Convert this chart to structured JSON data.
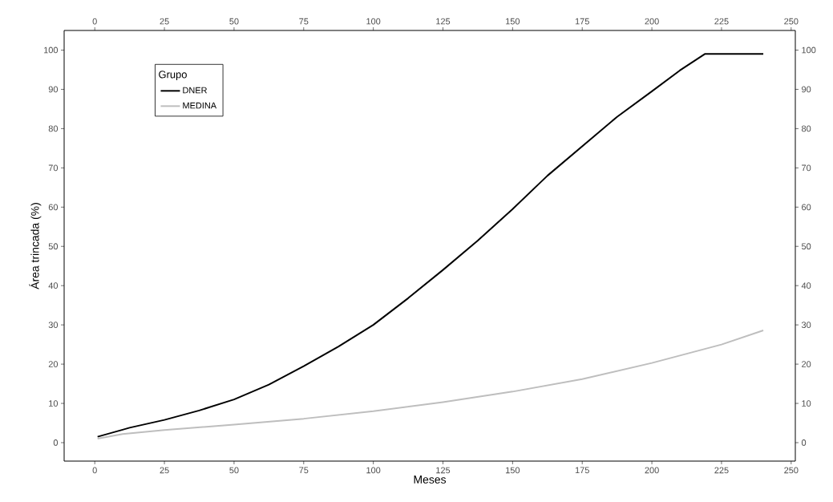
{
  "chart_data": {
    "type": "line",
    "xlabel": "Meses",
    "ylabel": "Área trincada (%)",
    "legend_title": "Grupo",
    "xlim": [
      -11,
      251.5
    ],
    "ylim": [
      -4.7,
      105
    ],
    "xticks": [
      0,
      25,
      50,
      75,
      100,
      125,
      150,
      175,
      200,
      225,
      250
    ],
    "yticks": [
      0,
      10,
      20,
      30,
      40,
      50,
      60,
      70,
      80,
      90,
      100
    ],
    "x2lim": [
      -11,
      251.5
    ],
    "x2ticks": [
      0,
      25,
      50,
      75,
      100,
      125,
      150,
      175,
      200,
      225,
      250
    ],
    "y2lim": [
      -4.7,
      105
    ],
    "y2ticks": [
      0,
      10,
      20,
      30,
      40,
      50,
      60,
      70,
      80,
      90,
      100
    ],
    "grid": false,
    "legend": "top left",
    "marker": "none",
    "line_style": "solid",
    "series": [
      {
        "name": "DNER",
        "color": "#000000",
        "x": [
          1,
          10,
          12.5,
          25,
          37.5,
          50,
          62.5,
          75,
          87.5,
          100,
          112.5,
          125,
          137.5,
          150,
          162.5,
          175,
          187.5,
          200,
          210,
          219,
          240
        ],
        "values": [
          1.5,
          3.3,
          3.8,
          5.8,
          8.2,
          11,
          14.8,
          19.5,
          24.5,
          30,
          36.8,
          44,
          51.5,
          59.5,
          68,
          75.5,
          83,
          89.5,
          94.8,
          99,
          99
        ]
      },
      {
        "name": "MEDINA",
        "color": "#bebebe",
        "x": [
          1,
          10,
          25,
          50,
          75,
          100,
          125,
          150,
          175,
          200,
          225,
          240
        ],
        "values": [
          1.0,
          2.2,
          3.2,
          4.6,
          6.1,
          8.0,
          10.3,
          13.0,
          16.2,
          20.3,
          25,
          28.6
        ]
      }
    ]
  }
}
